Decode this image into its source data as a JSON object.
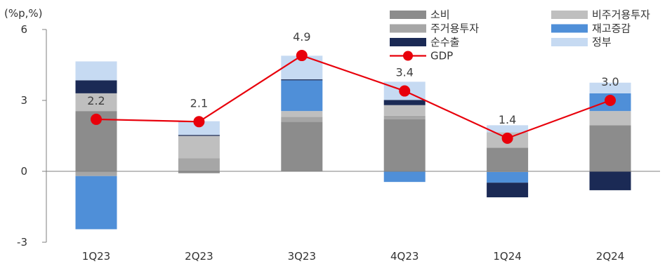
{
  "chart_data": {
    "type": "bar",
    "unit_label": "(%p,%)",
    "categories": [
      "1Q23",
      "2Q23",
      "3Q23",
      "4Q23",
      "1Q24",
      "2Q24"
    ],
    "ylim": [
      -3,
      6
    ],
    "yticks": [
      "6",
      "3",
      "0",
      "-3"
    ],
    "ytick_values": [
      6,
      3,
      0,
      -3
    ],
    "series": [
      {
        "name": "소비",
        "color": "#8c8c8c",
        "values": [
          2.55,
          -0.08,
          2.1,
          2.2,
          1.0,
          1.95
        ]
      },
      {
        "name": "주거용투자",
        "color": "#a6a6a6",
        "values": [
          -0.2,
          0.55,
          0.2,
          0.15,
          -0.03,
          0.0
        ]
      },
      {
        "name": "비주거용투자",
        "color": "#bfbfbf",
        "values": [
          0.75,
          0.95,
          0.25,
          0.45,
          0.65,
          0.6
        ]
      },
      {
        "name": "재고증감",
        "color": "#4f8fd8",
        "values": [
          -2.25,
          0.0,
          1.3,
          -0.45,
          -0.45,
          0.75
        ]
      },
      {
        "name": "순수출",
        "color": "#1b2a55",
        "values": [
          0.55,
          0.04,
          0.04,
          0.22,
          -0.62,
          -0.8
        ]
      },
      {
        "name": "정부",
        "color": "#c6daf2",
        "values": [
          0.8,
          0.58,
          1.0,
          0.77,
          0.3,
          0.45
        ]
      }
    ],
    "line": {
      "name": "GDP",
      "color": "#e8000b",
      "values": [
        2.2,
        2.1,
        4.9,
        3.4,
        1.4,
        3.0
      ],
      "labels": [
        "2.2",
        "2.1",
        "4.9",
        "3.4",
        "1.4",
        "3.0"
      ]
    },
    "legend_order": [
      "소비",
      "비주거용투자",
      "주거용투자",
      "재고증감",
      "순수출",
      "정부",
      "GDP"
    ],
    "grid": false,
    "legend_position": "top-right"
  }
}
